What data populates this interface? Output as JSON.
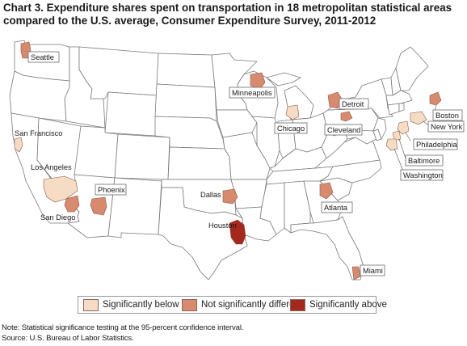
{
  "title": {
    "line1": "Chart 3. Expenditure shares spent on transportation in 18 metropolitan statistical areas",
    "line2": "compared to the U.S. average, Consumer Expenditure Survey, 2011-2012"
  },
  "colors": {
    "below": "#f6dcc4",
    "not_different": "#d88a6e",
    "above": "#a5281c",
    "state_fill": "#ffffff",
    "state_border": "#7a7a7a"
  },
  "legend": {
    "below": "Significantly below",
    "not_different": "Not significantly different",
    "above": "Significantly above"
  },
  "cities": [
    {
      "id": "seattle",
      "label": "Seattle",
      "category": "not_different"
    },
    {
      "id": "san-francisco",
      "label": "San Francisco",
      "category": "below"
    },
    {
      "id": "los-angeles",
      "label": "Los Angeles",
      "category": "below"
    },
    {
      "id": "san-diego",
      "label": "San Diego",
      "category": "not_different"
    },
    {
      "id": "phoenix",
      "label": "Phoenix",
      "category": "not_different"
    },
    {
      "id": "minneapolis",
      "label": "Minneapolis",
      "category": "not_different"
    },
    {
      "id": "chicago",
      "label": "Chicago",
      "category": "below"
    },
    {
      "id": "detroit",
      "label": "Detroit",
      "category": "not_different"
    },
    {
      "id": "cleveland",
      "label": "Cleveland",
      "category": "not_different"
    },
    {
      "id": "dallas",
      "label": "Dallas",
      "category": "not_different"
    },
    {
      "id": "houston",
      "label": "Houston",
      "category": "above"
    },
    {
      "id": "atlanta",
      "label": "Atlanta",
      "category": "not_different"
    },
    {
      "id": "miami",
      "label": "Miami",
      "category": "not_different"
    },
    {
      "id": "boston",
      "label": "Boston",
      "category": "not_different"
    },
    {
      "id": "new-york",
      "label": "New York",
      "category": "below"
    },
    {
      "id": "philadelphia",
      "label": "Philadelphia",
      "category": "below"
    },
    {
      "id": "baltimore",
      "label": "Baltimore",
      "category": "below"
    },
    {
      "id": "washington",
      "label": "Washington",
      "category": "below"
    }
  ],
  "notes": {
    "note": "Note: Statistical significance testing at the 95-percent confidence interval.",
    "source": "Source: U.S. Bureau of Labor Statistics."
  }
}
